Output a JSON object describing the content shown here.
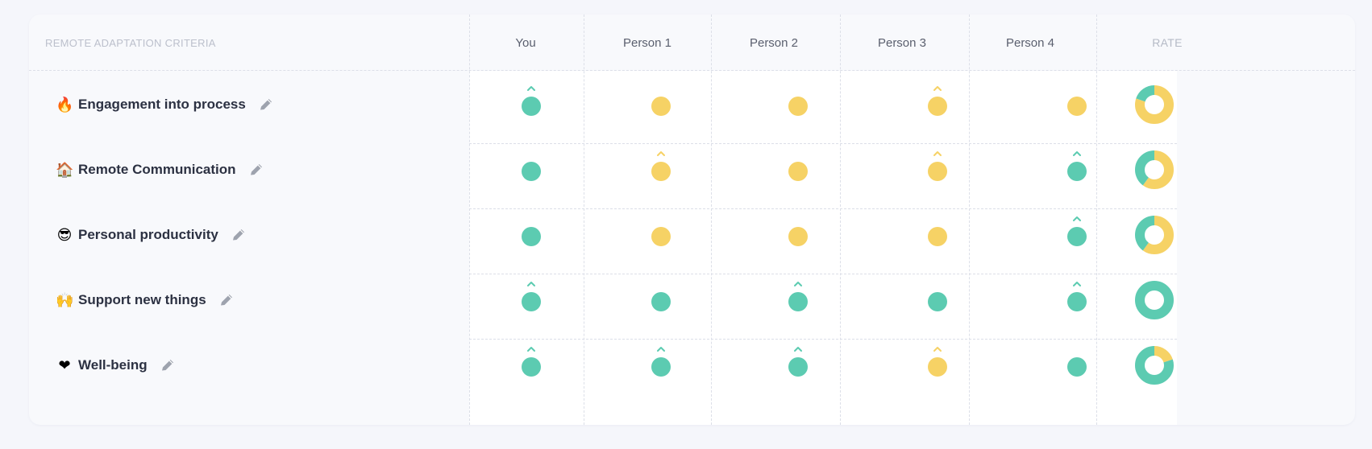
{
  "header": {
    "criteria_title": "REMOTE ADAPTATION CRITERIA",
    "columns": [
      "You",
      "Person 1",
      "Person 2",
      "Person 3",
      "Person 4"
    ],
    "rate_title": "RATE"
  },
  "colors": {
    "green": "#5ccbb1",
    "yellow": "#f6d265",
    "donut_hole": "#ffffff"
  },
  "rows": [
    {
      "emoji": "🔥",
      "label": "Engagement into process",
      "cells": [
        {
          "color": "green",
          "up": true
        },
        {
          "color": "yellow",
          "up": false
        },
        {
          "color": "yellow",
          "up": false
        },
        {
          "color": "yellow",
          "up": true
        },
        {
          "color": "yellow",
          "up": false
        }
      ],
      "rate": {
        "green": 1,
        "yellow": 4
      }
    },
    {
      "emoji": "🏠",
      "label": "Remote Communication",
      "cells": [
        {
          "color": "green",
          "up": false
        },
        {
          "color": "yellow",
          "up": true
        },
        {
          "color": "yellow",
          "up": false
        },
        {
          "color": "yellow",
          "up": true
        },
        {
          "color": "green",
          "up": true
        }
      ],
      "rate": {
        "green": 2,
        "yellow": 3
      }
    },
    {
      "emoji": "😎",
      "label": "Personal productivity",
      "cells": [
        {
          "color": "green",
          "up": false
        },
        {
          "color": "yellow",
          "up": false
        },
        {
          "color": "yellow",
          "up": false
        },
        {
          "color": "yellow",
          "up": false
        },
        {
          "color": "green",
          "up": true
        }
      ],
      "rate": {
        "green": 2,
        "yellow": 3
      }
    },
    {
      "emoji": "🙌",
      "label": "Support new things",
      "cells": [
        {
          "color": "green",
          "up": true
        },
        {
          "color": "green",
          "up": false
        },
        {
          "color": "green",
          "up": true
        },
        {
          "color": "green",
          "up": false
        },
        {
          "color": "green",
          "up": true
        }
      ],
      "rate": {
        "green": 5,
        "yellow": 0
      }
    },
    {
      "emoji": "❤",
      "label": "Well-being",
      "cells": [
        {
          "color": "green",
          "up": true
        },
        {
          "color": "green",
          "up": true
        },
        {
          "color": "green",
          "up": true
        },
        {
          "color": "yellow",
          "up": true
        },
        {
          "color": "green",
          "up": false
        }
      ],
      "rate": {
        "green": 4,
        "yellow": 1
      }
    }
  ],
  "icons": {
    "edit": "pencil-icon",
    "trend_up": "chevron-up-icon"
  }
}
